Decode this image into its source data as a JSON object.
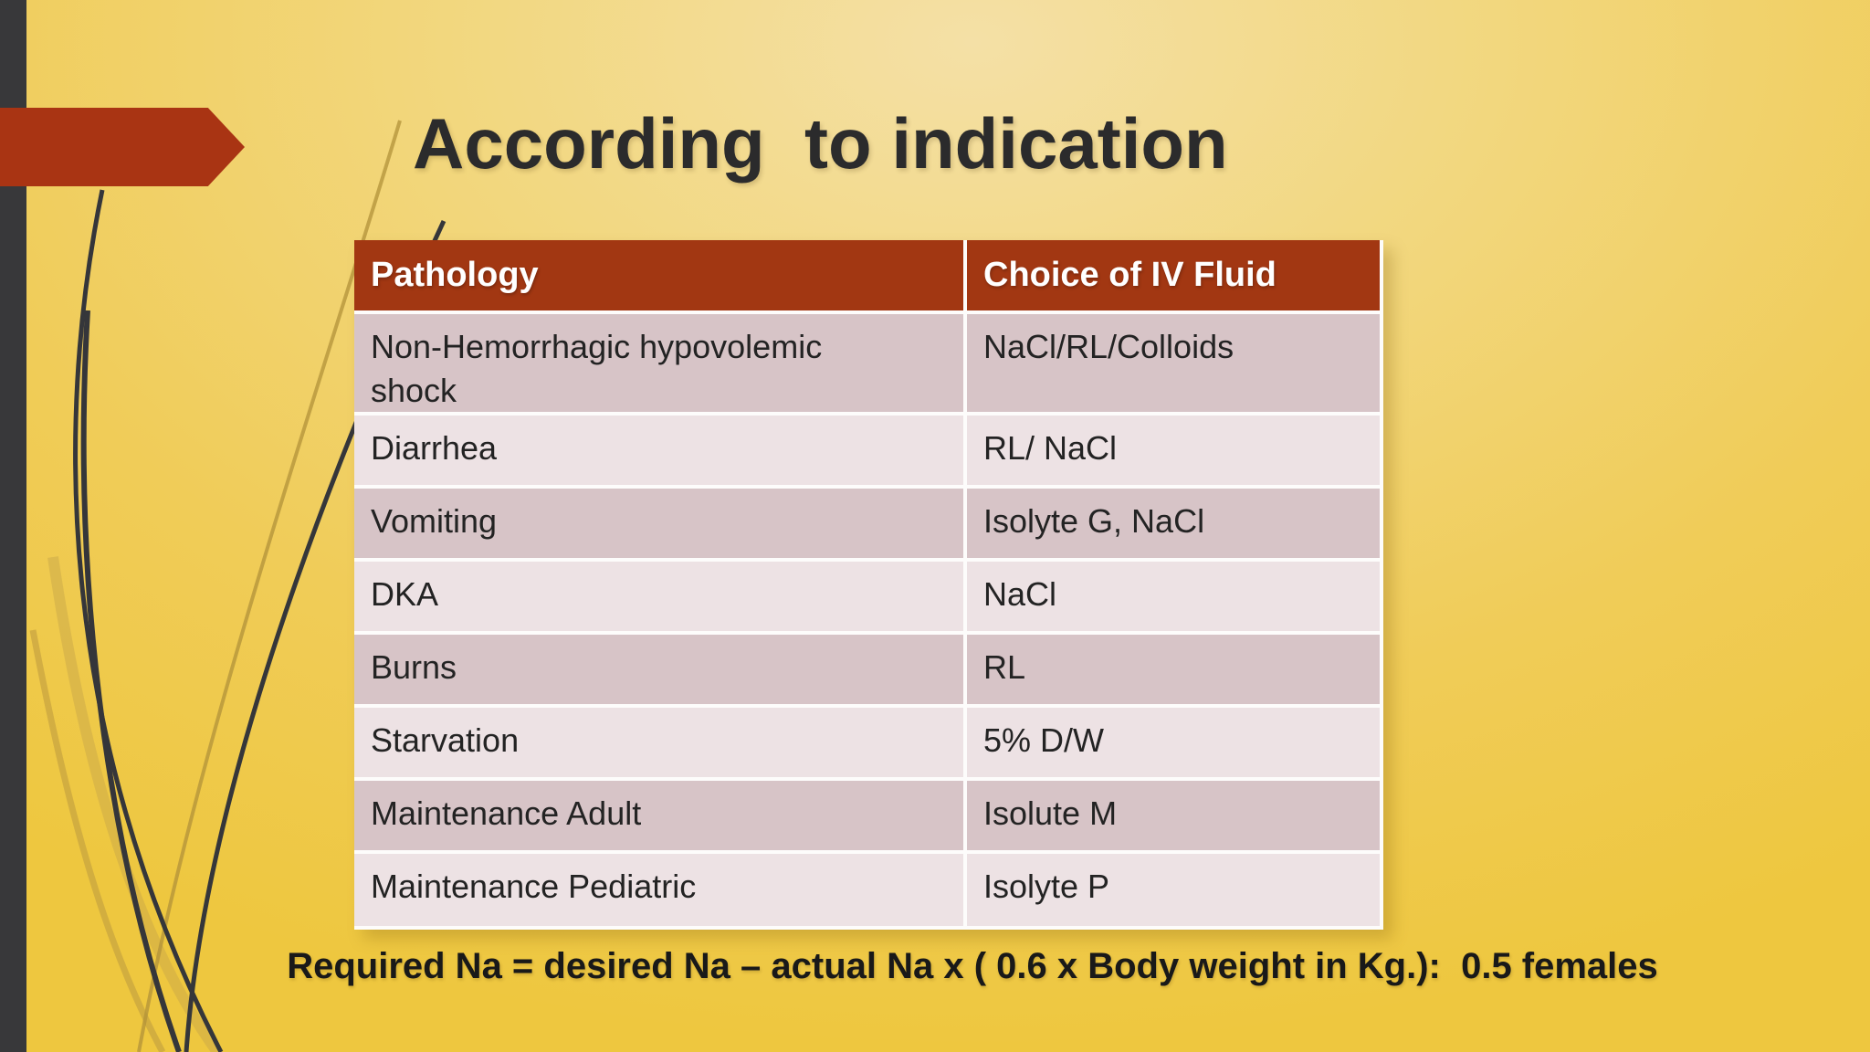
{
  "slide": {
    "title": "According  to indication",
    "formula": "Required Na = desired Na – actual Na x ( 0.6 x Body weight in Kg.):  0.5 females"
  },
  "table": {
    "headers": [
      "Pathology",
      "Choice of IV Fluid"
    ],
    "rows": [
      [
        "Non-Hemorrhagic hypovolemic shock",
        "NaCl/RL/Colloids"
      ],
      [
        "Diarrhea",
        "RL/ NaCl"
      ],
      [
        "Vomiting",
        "Isolyte G, NaCl"
      ],
      [
        "DKA",
        "NaCl"
      ],
      [
        "Burns",
        "RL"
      ],
      [
        "Starvation",
        "5% D/W"
      ],
      [
        "Maintenance Adult",
        "Isolute M"
      ],
      [
        "Maintenance Pediatric",
        "Isolyte P"
      ]
    ]
  },
  "colors": {
    "header_bg": "#a23712",
    "row_dark": "#d7c4c7",
    "row_light": "#ede2e4",
    "arrow_red": "#a93413",
    "bar_gray": "#38383a",
    "title_color": "#2b2b2c",
    "background_gold": "#f0cc58"
  }
}
